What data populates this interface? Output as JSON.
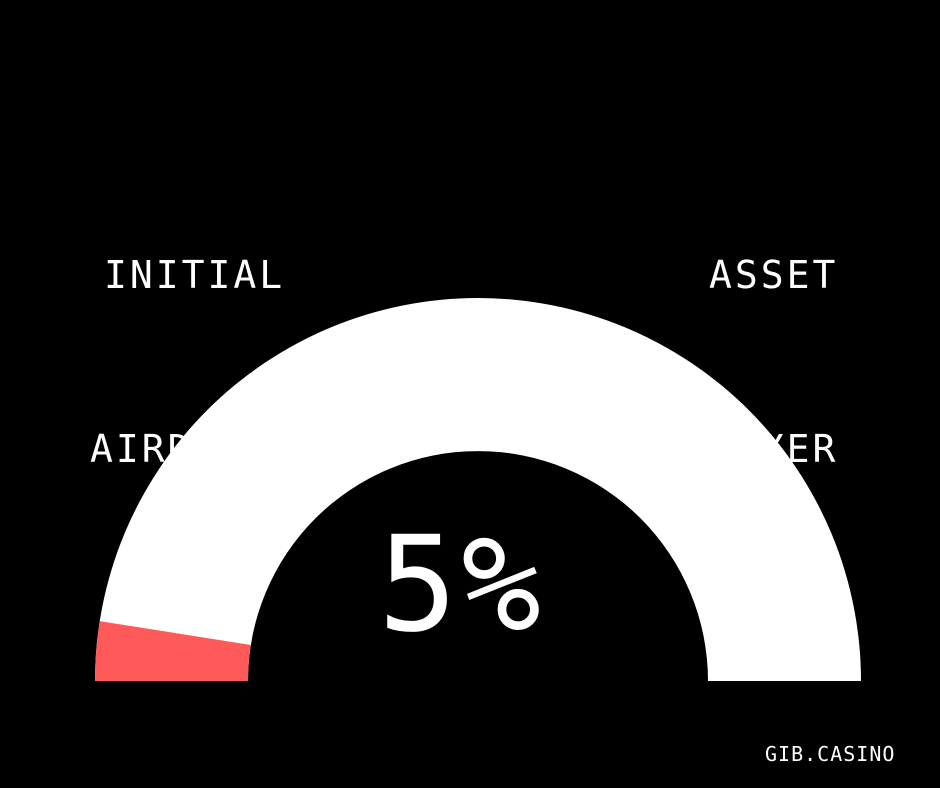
{
  "labels": {
    "left_line1": "INITIAL",
    "left_line2": "AIRDROP",
    "right_line1": "ASSET",
    "right_line2": "LAYER"
  },
  "value_text": "5%",
  "footer": "GIB.CASINO",
  "colors": {
    "background": "#000000",
    "track": "#ffffff",
    "fill": "#ff5a5a",
    "text": "#ffffff"
  },
  "chart_data": {
    "type": "gauge",
    "value": 5,
    "max": 100,
    "unit": "%",
    "labels": [
      "INITIAL AIRDROP",
      "ASSET LAYER"
    ]
  }
}
